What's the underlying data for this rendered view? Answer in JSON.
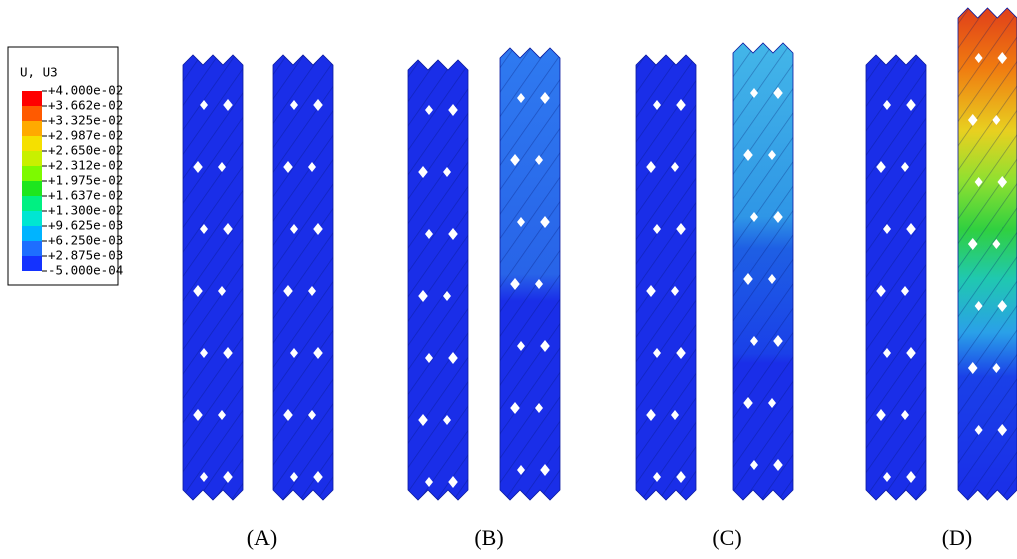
{
  "legend": {
    "title": "U, U3",
    "labels": [
      "+4.000e-02",
      "+3.662e-02",
      "+3.325e-02",
      "+2.987e-02",
      "+2.650e-02",
      "+2.312e-02",
      "+1.975e-02",
      "+1.637e-02",
      "+1.300e-02",
      "+9.625e-03",
      "+6.250e-03",
      "+2.875e-03",
      "-5.000e-04"
    ],
    "colors": [
      "#ff0000",
      "#ff5a00",
      "#ffaa00",
      "#f5e000",
      "#c8f000",
      "#7dfa00",
      "#1ee61e",
      "#00f082",
      "#00e6d2",
      "#00b4ff",
      "#1e6eff",
      "#1432ff",
      "#0000ff"
    ]
  },
  "panels": [
    {
      "label": "(A)"
    },
    {
      "label": "(B)"
    },
    {
      "label": "(C)"
    },
    {
      "label": "(D)"
    }
  ]
}
